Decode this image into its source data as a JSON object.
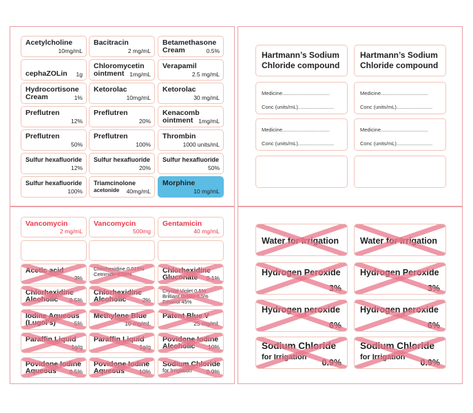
{
  "tl": [
    {
      "n": "Acetylcholine",
      "c": "10mg/mL"
    },
    {
      "n": "Bacitracin",
      "c": "2 mg/mL"
    },
    {
      "n": "Betamethasone",
      "n2": "Cream",
      "c": "0.5%"
    },
    {
      "n": "cephaZOLin",
      "c": "1g",
      "inline": true
    },
    {
      "n": "Chloromycetin",
      "n2": "ointment",
      "c": "1mg/mL"
    },
    {
      "n": "Verapamil",
      "c": "2.5 mg/mL"
    },
    {
      "n": "Hydrocortisone",
      "n2": "Cream",
      "c": "1%"
    },
    {
      "n": "Ketorolac",
      "c": "10mg/mL"
    },
    {
      "n": "Ketorolac",
      "c": "30 mg/mL"
    },
    {
      "n": "Preflutren",
      "c": "12%"
    },
    {
      "n": "Preflutren",
      "c": "20%"
    },
    {
      "n": "Kenacomb",
      "n2": "ointment",
      "c": "1mg/mL"
    },
    {
      "n": "Preflutren",
      "c": "50%"
    },
    {
      "n": "Preflutren",
      "c": "100%"
    },
    {
      "n": "Thrombin",
      "c": "1000 units/mL"
    },
    {
      "n": "Sulfur hexafluoride",
      "c": "12%",
      "small": true
    },
    {
      "n": "Sulfur hexafluoride",
      "c": "20%",
      "small": true
    },
    {
      "n": "Sulfur hexafluoride",
      "c": "50%",
      "small": true
    },
    {
      "n": "Sulfur hexafluoride",
      "c": "100%",
      "small": true
    },
    {
      "n": "Triamcinolone",
      "n2": "acetonide",
      "c": "40mg/mL",
      "small": true
    },
    {
      "n": "Morphine",
      "c": "10 mg/mL",
      "blue": true
    }
  ],
  "tr": {
    "title": "Hartmann’s Sodium Chloride compound",
    "medicine": "Medicine.................................",
    "conc": "Conc (units/mL)........................."
  },
  "bl": [
    {
      "n": "Vancomycin",
      "c": "2 mg/mL",
      "red": true
    },
    {
      "n": "Vancomycin",
      "c": "500mg",
      "red": true
    },
    {
      "n": "Gentamicin",
      "c": "40 mg/mL",
      "red": true
    },
    {
      "blank": true
    },
    {
      "blank": true
    },
    {
      "blank": true
    },
    {
      "n": "Acetic acid",
      "c": "3%",
      "x": true
    },
    {
      "n": "Chlorhexidine 0.015%",
      "n2": "Cetrimide 0.15%",
      "tiny": true,
      "x": true
    },
    {
      "n": "Chlorhexidine",
      "n2": "Gluconate",
      "c": "0.1%",
      "x": true
    },
    {
      "n": "Chlorhexidine",
      "n2": "Alcoholic",
      "c": "0.5%",
      "x": true
    },
    {
      "n": "Chlorhexidine",
      "n2": "Alcoholic",
      "c": "2%",
      "x": true
    },
    {
      "n": "Crystal Violet 0.5%",
      "n2": "Brilliant Green 0.5%",
      "n3": "Ethanol 45%",
      "tiny": true,
      "x": true
    },
    {
      "n": "Iodine Aqueous",
      "n2": "(Lugol's)",
      "c": "5%",
      "x": true
    },
    {
      "n": "Methylene Blue",
      "c": "10 mg/mL",
      "x": true
    },
    {
      "n": "Patent Blue V",
      "c": "25 mg/mL",
      "x": true
    },
    {
      "n": "Paraffin Liquid",
      "c": "1g/g",
      "x": true
    },
    {
      "n": "Paraffin Liquid",
      "c": "1g/g",
      "x": true
    },
    {
      "n": "Povidone Iodine",
      "n2": "Alcoholic",
      "c": "10%",
      "x": true
    },
    {
      "n": "Povidone Iodine",
      "n2": "Aqueous",
      "c": "0.5%",
      "x": true
    },
    {
      "n": "Povidone Iodine",
      "n2": "Aqueous",
      "c": "10%",
      "x": true
    },
    {
      "n": "Sodium Chloride",
      "n2": "for Irrigation",
      "c": "0.9%",
      "x": true
    }
  ],
  "br": [
    {
      "n": "Water for Irrigation"
    },
    {
      "n": "Hydrogen Peroxide",
      "c": "3%"
    },
    {
      "n": "Hydrogen peroxide",
      "c": "6%"
    },
    {
      "n": "Sodium Chloride",
      "n2": "for Irrigation",
      "c": "0.9%"
    }
  ]
}
